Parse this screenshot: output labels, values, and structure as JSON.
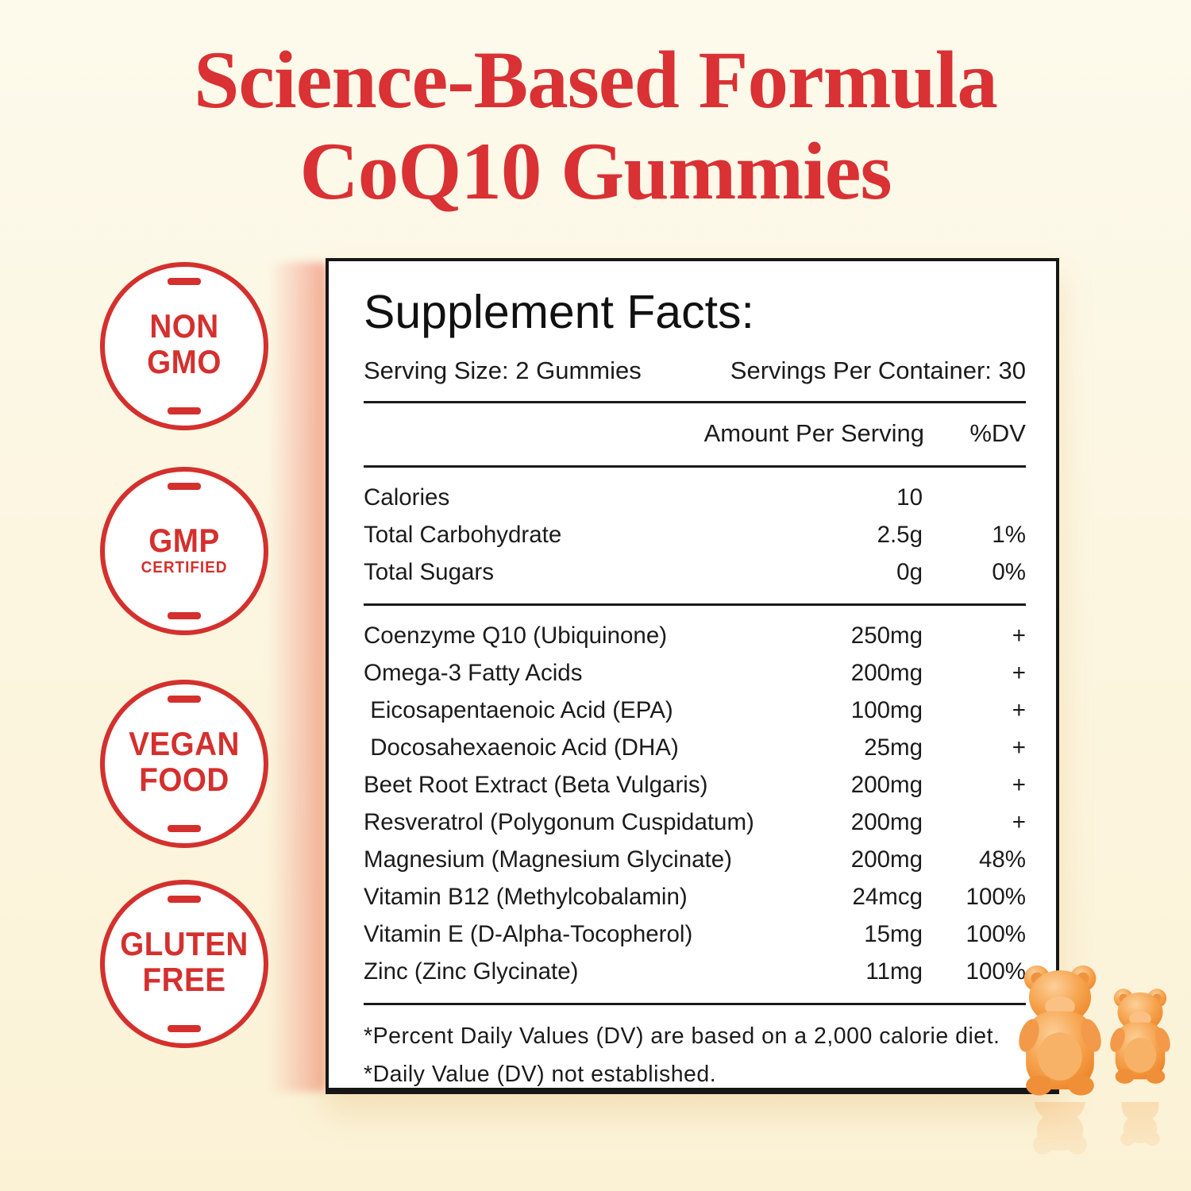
{
  "title": {
    "line1": "Science-Based Formula",
    "line2": "CoQ10 Gummies",
    "color": "#d93134"
  },
  "badges": [
    {
      "line1": "NON",
      "line2": "GMO",
      "subline": ""
    },
    {
      "line1": "GMP",
      "line2": "",
      "subline": "CERTIFIED"
    },
    {
      "line1": "VEGAN",
      "line2": "FOOD",
      "subline": ""
    },
    {
      "line1": "GLUTEN",
      "line2": "FREE",
      "subline": ""
    }
  ],
  "panel": {
    "title": "Supplement Facts:",
    "serving_size": "Serving Size: 2 Gummies",
    "servings_per_container": "Servings Per Container: 30",
    "amount_header": "Amount Per Serving",
    "dv_header": "%DV",
    "nutrition_rows": [
      {
        "name": "Calories",
        "amount": "10",
        "dv": ""
      },
      {
        "name": "Total Carbohydrate",
        "amount": "2.5g",
        "dv": "1%"
      },
      {
        "name": "Total Sugars",
        "amount": "0g",
        "dv": "0%"
      }
    ],
    "ingredient_rows": [
      {
        "name": "Coenzyme Q10 (Ubiquinone)",
        "amount": "250mg",
        "dv": "+"
      },
      {
        "name": "Omega-3 Fatty Acids",
        "amount": "200mg",
        "dv": "+"
      },
      {
        "name": " Eicosapentaenoic Acid (EPA)",
        "amount": "100mg",
        "dv": "+"
      },
      {
        "name": " Docosahexaenoic Acid (DHA)",
        "amount": "25mg",
        "dv": "+"
      },
      {
        "name": "Beet Root Extract (Beta Vulgaris)",
        "amount": "200mg",
        "dv": "+"
      },
      {
        "name": "Resveratrol (Polygonum Cuspidatum)",
        "amount": "200mg",
        "dv": "+"
      },
      {
        "name": "Magnesium (Magnesium Glycinate)",
        "amount": "200mg",
        "dv": "48%"
      },
      {
        "name": "Vitamin B12 (Methylcobalamin)",
        "amount": "24mcg",
        "dv": "100%"
      },
      {
        "name": "Vitamin E (D-Alpha-Tocopherol)",
        "amount": "15mg",
        "dv": "100%"
      },
      {
        "name": "Zinc (Zinc Glycinate)",
        "amount": "11mg",
        "dv": "100%"
      }
    ],
    "footnotes": [
      "*Percent Daily Values (DV) are based on a 2,000 calorie diet.",
      "*Daily Value (DV) not established."
    ]
  },
  "decor": {
    "gummy_bears": "two orange gummy bear candies",
    "bear_color": "#f59c3f",
    "badge_red": "#d4302e",
    "background_cream": "#fcf6e1"
  }
}
